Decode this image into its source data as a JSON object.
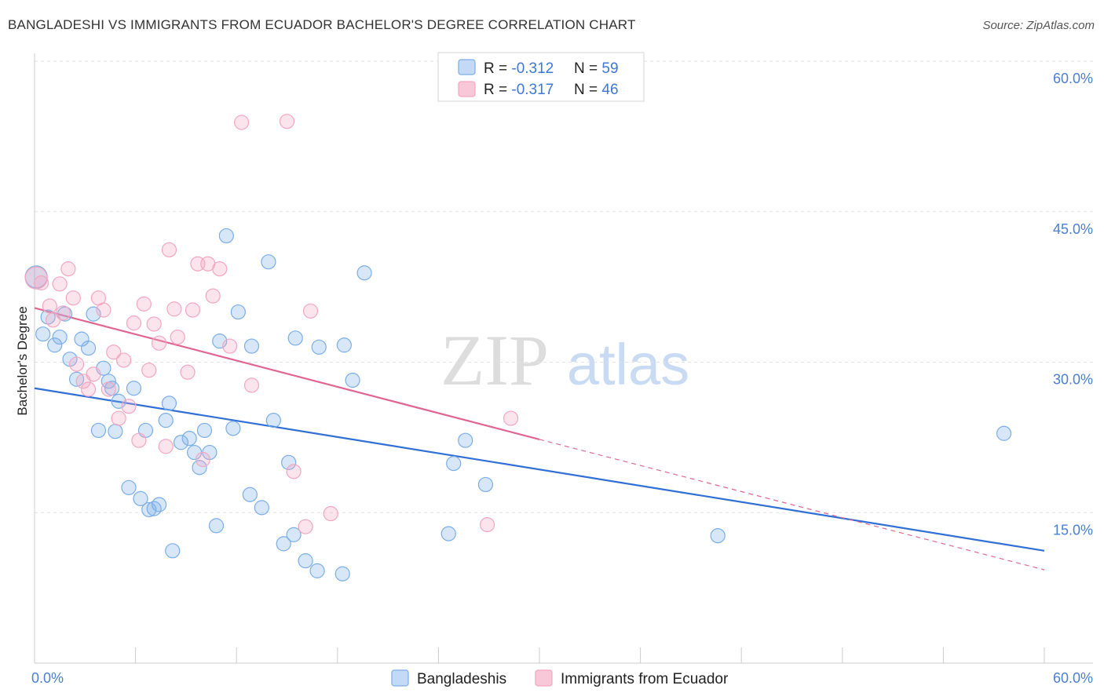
{
  "title": "BANGLADESHI VS IMMIGRANTS FROM ECUADOR BACHELOR'S DEGREE CORRELATION CHART",
  "source": "Source: ZipAtlas.com",
  "watermark": {
    "part1": "ZIP",
    "part2": "atlas"
  },
  "chart_data": {
    "type": "scatter",
    "ylabel": "Bachelor's Degree",
    "xlim": [
      0,
      60
    ],
    "ylim": [
      0,
      60
    ],
    "x_tick_labels": [
      "0.0%",
      "60.0%"
    ],
    "y_tick_labels": [
      {
        "value": 15,
        "label": "15.0%"
      },
      {
        "value": 30,
        "label": "30.0%"
      },
      {
        "value": 45,
        "label": "45.0%"
      },
      {
        "value": 60,
        "label": "60.0%"
      }
    ],
    "grid": true,
    "legend_position": "bottom-center",
    "stats_box": [
      {
        "r_label": "R = ",
        "r_value": "-0.312",
        "n_label": "N = ",
        "n_value": "59"
      },
      {
        "r_label": "R = ",
        "r_value": "-0.317",
        "n_label": "N = ",
        "n_value": "46"
      }
    ],
    "series": [
      {
        "name": "Bangladeshis",
        "color": "#7aaee8",
        "line_color": "#2f6fd6",
        "trend": {
          "x": [
            0,
            60
          ],
          "y": [
            27.4,
            11.2
          ],
          "dashed_to": null
        },
        "points": [
          [
            0.1,
            38.5
          ],
          [
            0.5,
            32.8
          ],
          [
            0.8,
            34.5
          ],
          [
            1.2,
            31.7
          ],
          [
            1.5,
            32.5
          ],
          [
            1.8,
            34.8
          ],
          [
            2.1,
            30.3
          ],
          [
            2.5,
            28.3
          ],
          [
            2.8,
            32.3
          ],
          [
            3.2,
            31.4
          ],
          [
            3.5,
            34.8
          ],
          [
            3.8,
            23.2
          ],
          [
            4.1,
            29.4
          ],
          [
            4.4,
            28.1
          ],
          [
            4.6,
            27.4
          ],
          [
            4.8,
            23.1
          ],
          [
            5.0,
            26.1
          ],
          [
            5.6,
            17.5
          ],
          [
            5.9,
            27.4
          ],
          [
            6.3,
            16.4
          ],
          [
            6.6,
            23.2
          ],
          [
            6.8,
            15.3
          ],
          [
            7.1,
            15.4
          ],
          [
            7.4,
            15.8
          ],
          [
            7.8,
            24.2
          ],
          [
            8.0,
            25.9
          ],
          [
            8.2,
            11.2
          ],
          [
            8.7,
            22.0
          ],
          [
            9.2,
            22.4
          ],
          [
            9.5,
            21.0
          ],
          [
            9.8,
            19.5
          ],
          [
            10.1,
            23.2
          ],
          [
            10.4,
            21.0
          ],
          [
            10.8,
            13.7
          ],
          [
            11.0,
            32.1
          ],
          [
            11.4,
            42.6
          ],
          [
            11.8,
            23.4
          ],
          [
            12.1,
            35.0
          ],
          [
            12.8,
            16.8
          ],
          [
            12.9,
            31.6
          ],
          [
            13.5,
            15.5
          ],
          [
            13.9,
            40.0
          ],
          [
            14.2,
            24.2
          ],
          [
            14.8,
            11.9
          ],
          [
            15.1,
            20.0
          ],
          [
            15.4,
            12.8
          ],
          [
            15.5,
            32.4
          ],
          [
            16.1,
            10.2
          ],
          [
            16.8,
            9.2
          ],
          [
            16.9,
            31.5
          ],
          [
            18.3,
            8.9
          ],
          [
            18.4,
            31.7
          ],
          [
            18.9,
            28.2
          ],
          [
            19.6,
            38.9
          ],
          [
            24.6,
            12.9
          ],
          [
            24.9,
            19.9
          ],
          [
            25.6,
            22.2
          ],
          [
            26.8,
            17.8
          ],
          [
            40.6,
            12.7
          ],
          [
            57.6,
            22.9
          ]
        ]
      },
      {
        "name": "Immigrants from Ecuador",
        "color": "#f3a6c0",
        "line_color": "#e0668f",
        "trend": {
          "x": [
            0,
            30
          ],
          "y": [
            35.4,
            22.3
          ],
          "dashed_to": {
            "x": 60,
            "y": 9.3
          }
        },
        "points": [
          [
            0.1,
            38.4
          ],
          [
            0.4,
            37.9
          ],
          [
            0.9,
            35.6
          ],
          [
            1.1,
            34.2
          ],
          [
            1.5,
            37.8
          ],
          [
            1.7,
            34.9
          ],
          [
            2.0,
            39.3
          ],
          [
            2.3,
            36.4
          ],
          [
            2.5,
            29.8
          ],
          [
            2.9,
            28.1
          ],
          [
            3.2,
            27.3
          ],
          [
            3.5,
            28.8
          ],
          [
            3.8,
            36.4
          ],
          [
            4.1,
            35.2
          ],
          [
            4.4,
            27.3
          ],
          [
            4.7,
            31.0
          ],
          [
            5.0,
            24.4
          ],
          [
            5.3,
            30.2
          ],
          [
            5.6,
            25.6
          ],
          [
            5.9,
            33.9
          ],
          [
            6.2,
            22.2
          ],
          [
            6.5,
            35.8
          ],
          [
            6.8,
            29.2
          ],
          [
            7.1,
            33.8
          ],
          [
            7.4,
            31.9
          ],
          [
            7.8,
            21.6
          ],
          [
            8.0,
            41.2
          ],
          [
            8.3,
            35.3
          ],
          [
            8.5,
            32.5
          ],
          [
            9.1,
            29.0
          ],
          [
            9.4,
            35.2
          ],
          [
            9.7,
            39.8
          ],
          [
            10.0,
            20.3
          ],
          [
            10.3,
            39.8
          ],
          [
            10.6,
            36.6
          ],
          [
            11.0,
            39.3
          ],
          [
            11.6,
            31.6
          ],
          [
            12.3,
            53.9
          ],
          [
            12.9,
            27.7
          ],
          [
            15.0,
            54.0
          ],
          [
            15.4,
            19.1
          ],
          [
            16.1,
            13.6
          ],
          [
            16.4,
            35.1
          ],
          [
            17.6,
            14.9
          ],
          [
            26.9,
            13.8
          ],
          [
            28.3,
            24.4
          ]
        ]
      }
    ]
  }
}
